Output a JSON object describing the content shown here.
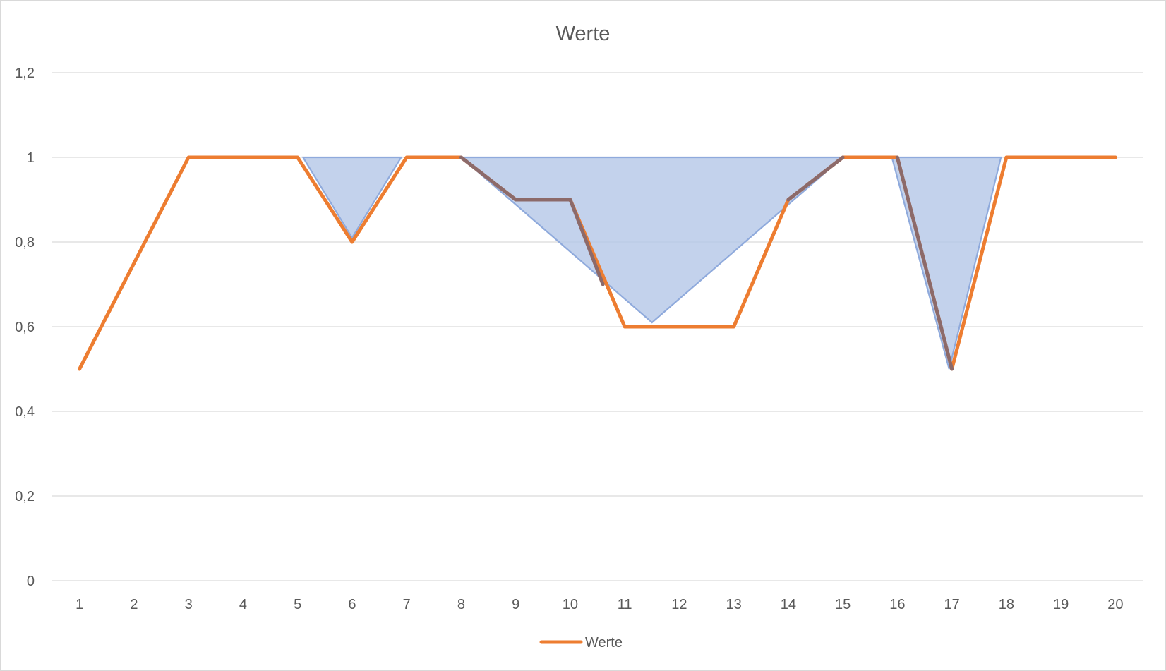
{
  "chart_data": {
    "type": "line",
    "title": "Werte",
    "xlabel": "",
    "ylabel": "",
    "categories": [
      "1",
      "2",
      "3",
      "4",
      "5",
      "6",
      "7",
      "8",
      "9",
      "10",
      "11",
      "12",
      "13",
      "14",
      "15",
      "16",
      "17",
      "18",
      "19",
      "20"
    ],
    "y_ticks": [
      "0",
      "0,2",
      "0,4",
      "0,6",
      "0,8",
      "1",
      "1,2"
    ],
    "ylim": [
      0,
      1.2
    ],
    "grid": true,
    "legend_position": "bottom",
    "series": [
      {
        "name": "Werte",
        "color": "#ed7d31",
        "values": [
          0.5,
          0.75,
          1,
          1,
          1,
          0.8,
          1,
          1,
          0.9,
          0.9,
          0.6,
          0.6,
          0.6,
          0.9,
          1,
          1,
          0.5,
          1,
          1,
          1
        ]
      }
    ],
    "shaded_regions": [
      {
        "color": "#b4c7e7",
        "outline": "#8faadc",
        "points": [
          [
            5.1,
            1.0
          ],
          [
            6.9,
            1.0
          ],
          [
            6.0,
            0.81
          ]
        ]
      },
      {
        "color": "#b4c7e7",
        "outline": "#8faadc",
        "points": [
          [
            8.0,
            1.0
          ],
          [
            15.0,
            1.0
          ],
          [
            11.5,
            0.61
          ]
        ]
      },
      {
        "color": "#b4c7e7",
        "outline": "#8faadc",
        "points": [
          [
            15.9,
            1.0
          ],
          [
            17.9,
            1.0
          ],
          [
            16.95,
            0.5
          ]
        ]
      }
    ],
    "overlay_segments": [
      {
        "color": "#8c6a6a",
        "points": [
          [
            8,
            1.0
          ],
          [
            9,
            0.9
          ],
          [
            10,
            0.9
          ],
          [
            10.6,
            0.7
          ]
        ]
      },
      {
        "color": "#8c6a6a",
        "points": [
          [
            14,
            0.9
          ],
          [
            15,
            1.0
          ]
        ]
      },
      {
        "color": "#8c6a6a",
        "points": [
          [
            16,
            1.0
          ],
          [
            17,
            0.5
          ]
        ]
      }
    ]
  }
}
